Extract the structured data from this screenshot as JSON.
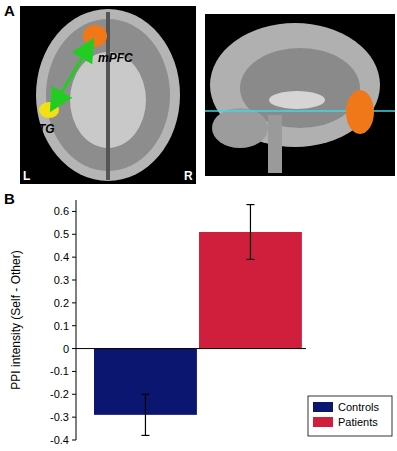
{
  "panel_a": {
    "panel_label": "A",
    "regions": [
      "mPFC",
      "STG"
    ],
    "sides": [
      "L",
      "R"
    ]
  },
  "chart_data": {
    "type": "bar",
    "panel_label": "B",
    "y_label": "PPI intensity (Self - Other)",
    "categories": [
      "Controls",
      "Patients"
    ],
    "values": [
      -0.29,
      0.51
    ],
    "errors": [
      0.09,
      0.12
    ],
    "colors": [
      "#0b1670",
      "#d01f3c"
    ],
    "ylim": [
      -0.4,
      0.65
    ],
    "yticks": [
      -0.4,
      -0.3,
      -0.2,
      -0.1,
      0,
      0.1,
      0.2,
      0.3,
      0.4,
      0.5,
      0.6
    ],
    "legend": "lower right",
    "tick_labels": "y",
    "grid": false
  }
}
